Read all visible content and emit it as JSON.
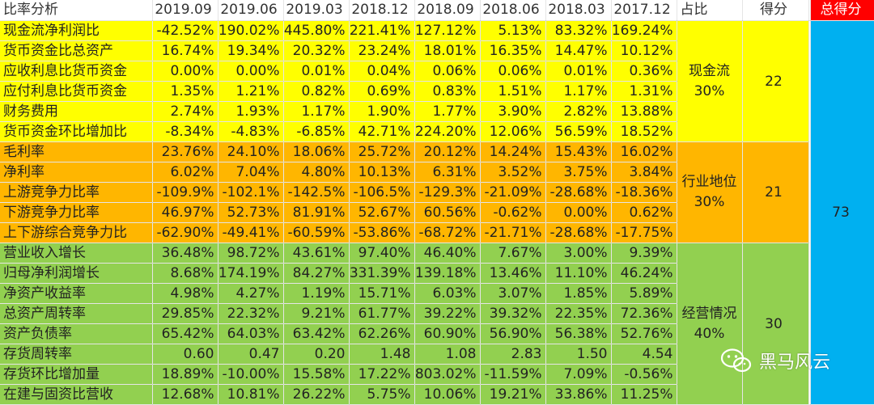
{
  "header": {
    "title": "比率分析",
    "periods": [
      "2019.09",
      "2019.06",
      "2019.03",
      "2018.12",
      "2018.09",
      "2018.06",
      "2018.03",
      "2017.12"
    ],
    "weight": "占比",
    "score": "得分",
    "total_score": "总得分"
  },
  "groups": [
    {
      "category": "现金流30%",
      "score": "22",
      "color": "#ffff00",
      "rows": [
        {
          "name": "现金流净利润比",
          "values": [
            "-42.52%",
            "190.02%",
            "445.80%",
            "221.41%",
            "127.12%",
            "5.13%",
            "83.32%",
            "169.24%"
          ]
        },
        {
          "name": "货币资金比总资产",
          "values": [
            "16.74%",
            "19.34%",
            "20.32%",
            "23.24%",
            "18.01%",
            "16.35%",
            "14.47%",
            "10.12%"
          ]
        },
        {
          "name": "应收利息比货币资金",
          "values": [
            "0.00%",
            "0.00%",
            "0.01%",
            "0.04%",
            "0.06%",
            "0.06%",
            "0.01%",
            "0.36%"
          ]
        },
        {
          "name": "应付利息比货币资金",
          "values": [
            "1.35%",
            "1.21%",
            "0.82%",
            "0.69%",
            "0.83%",
            "1.51%",
            "1.17%",
            "1.31%"
          ]
        },
        {
          "name": "财务费用",
          "values": [
            "2.74%",
            "1.93%",
            "1.17%",
            "1.90%",
            "1.77%",
            "3.90%",
            "2.82%",
            "13.88%"
          ]
        },
        {
          "name": "货币资金环比增加比",
          "values": [
            "-8.34%",
            "-4.83%",
            "-6.85%",
            "42.71%",
            "224.20%",
            "12.06%",
            "56.59%",
            "18.52%"
          ]
        }
      ]
    },
    {
      "category": "行业地位30%",
      "score": "21",
      "color": "#ffb600",
      "rows": [
        {
          "name": "毛利率",
          "values": [
            "23.76%",
            "24.10%",
            "18.06%",
            "25.72%",
            "20.12%",
            "14.24%",
            "15.43%",
            "16.02%"
          ]
        },
        {
          "name": "净利率",
          "values": [
            "6.02%",
            "7.04%",
            "4.80%",
            "10.13%",
            "6.31%",
            "3.52%",
            "3.75%",
            "3.84%"
          ]
        },
        {
          "name": "上游竞争力比率",
          "values": [
            "-109.9%",
            "-102.1%",
            "-142.5%",
            "-106.5%",
            "-129.3%",
            "-21.09%",
            "-28.68%",
            "-18.36%"
          ]
        },
        {
          "name": "下游竞争力比率",
          "values": [
            "46.97%",
            "52.73%",
            "81.91%",
            "52.67%",
            "60.56%",
            "-0.62%",
            "0.00%",
            "0.62%"
          ]
        },
        {
          "name": "上下游综合竞争力比",
          "values": [
            "-62.90%",
            "-49.41%",
            "-60.59%",
            "-53.86%",
            "-68.72%",
            "-21.71%",
            "-28.68%",
            "-17.75%"
          ]
        }
      ]
    },
    {
      "category": "经营情况40%",
      "score": "30",
      "color": "#92d050",
      "rows": [
        {
          "name": "营业收入增长",
          "values": [
            "36.48%",
            "98.72%",
            "43.61%",
            "97.40%",
            "46.40%",
            "7.67%",
            "3.00%",
            "9.39%"
          ]
        },
        {
          "name": "归母净利润增长",
          "values": [
            "8.68%",
            "174.19%",
            "84.27%",
            "331.39%",
            "139.18%",
            "13.46%",
            "11.10%",
            "46.24%"
          ]
        },
        {
          "name": "净资产收益率",
          "values": [
            "4.98%",
            "4.27%",
            "1.19%",
            "15.71%",
            "6.03%",
            "3.07%",
            "1.85%",
            "5.89%"
          ]
        },
        {
          "name": "总资产周转率",
          "values": [
            "29.85%",
            "22.32%",
            "9.21%",
            "61.77%",
            "39.22%",
            "39.32%",
            "22.35%",
            "72.36%"
          ]
        },
        {
          "name": "资产负债率",
          "values": [
            "65.42%",
            "64.03%",
            "63.42%",
            "62.26%",
            "60.90%",
            "56.90%",
            "56.38%",
            "52.76%"
          ]
        },
        {
          "name": "存货周转率",
          "values": [
            "0.60",
            "0.47",
            "0.20",
            "1.48",
            "1.08",
            "2.83",
            "1.50",
            "4.54"
          ]
        },
        {
          "name": "存货环比增加量",
          "values": [
            "18.89%",
            "-10.00%",
            "15.58%",
            "17.22%",
            "803.02%",
            "-11.59%",
            "7.09%",
            "-0.56%"
          ]
        },
        {
          "name": "在建与固资比营收",
          "values": [
            "12.68%",
            "10.81%",
            "26.22%",
            "5.75%",
            "10.06%",
            "19.21%",
            "33.86%",
            "11.25%"
          ]
        }
      ]
    }
  ],
  "total": "73",
  "watermark": {
    "icon": "wechat-icon",
    "text": "黑马风云"
  }
}
